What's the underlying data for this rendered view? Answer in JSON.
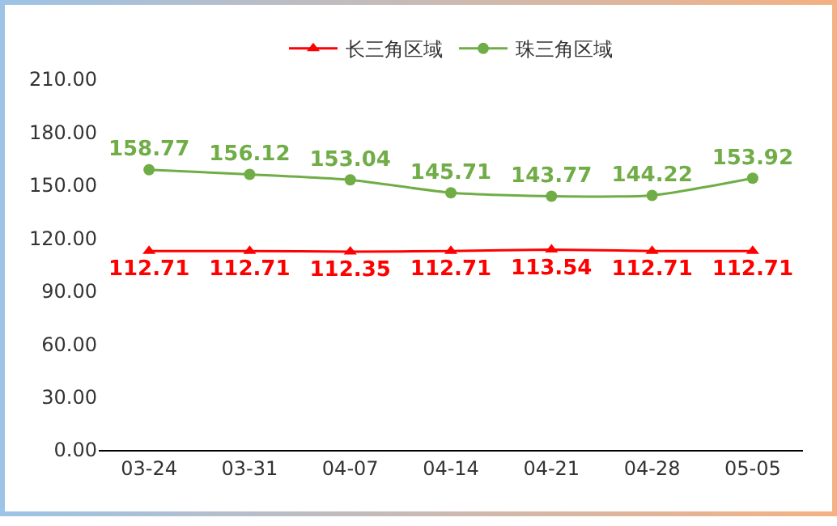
{
  "chart_data": {
    "type": "line",
    "categories": [
      "03-24",
      "03-31",
      "04-07",
      "04-14",
      "04-21",
      "04-28",
      "05-05"
    ],
    "series": [
      {
        "name": "长三角区域",
        "color": "#ff0000",
        "marker": "triangle",
        "values": [
          112.71,
          112.71,
          112.35,
          112.71,
          113.54,
          112.71,
          112.71
        ]
      },
      {
        "name": "珠三角区域",
        "color": "#70ad47",
        "marker": "circle",
        "values": [
          158.77,
          156.12,
          153.04,
          145.71,
          143.77,
          144.22,
          153.92
        ]
      }
    ],
    "ylim": [
      0,
      210
    ],
    "yticks": [
      {
        "value": 0,
        "label": "0.00"
      },
      {
        "value": 30,
        "label": "30.00"
      },
      {
        "value": 60,
        "label": "60.00"
      },
      {
        "value": 90,
        "label": "90.00"
      },
      {
        "value": 120,
        "label": "120.00"
      },
      {
        "value": 150,
        "label": "150.00"
      },
      {
        "value": 180,
        "label": "180.00"
      },
      {
        "value": 210,
        "label": "210.00"
      }
    ],
    "grid": false,
    "legend": "top",
    "data_labels": true,
    "line_style": "solid"
  }
}
